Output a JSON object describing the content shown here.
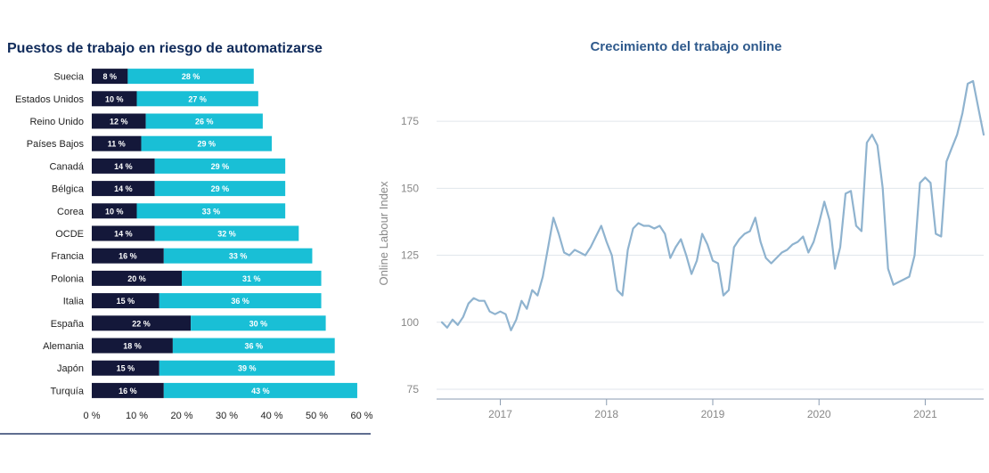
{
  "charts": {
    "left_title": "Puestos de trabajo en riesgo de automatizarse",
    "right_title": "Crecimiento del trabajo online"
  },
  "colors": {
    "dark": "#14183a",
    "light": "#19bfd6",
    "line": "#8fb3cf",
    "grid": "#e1e6ec"
  },
  "chart_data": [
    {
      "type": "bar",
      "orientation": "horizontal",
      "stacked": true,
      "title": "Puestos de trabajo en riesgo de automatizarse",
      "categories": [
        "Suecia",
        "Estados Unidos",
        "Reino Unido",
        "Países Bajos",
        "Canadá",
        "Bélgica",
        "Corea",
        "OCDE",
        "Francia",
        "Polonia",
        "Italia",
        "España",
        "Alemania",
        "Japón",
        "Turquía"
      ],
      "series": [
        {
          "values": [
            8,
            10,
            12,
            11,
            14,
            14,
            10,
            14,
            16,
            20,
            15,
            22,
            18,
            15,
            16
          ],
          "labels": [
            "8 %",
            "10 %",
            "12 %",
            "11 %",
            "14 %",
            "14 %",
            "10 %",
            "14 %",
            "16 %",
            "20 %",
            "15 %",
            "22 %",
            "18 %",
            "15 %",
            "16 %"
          ]
        },
        {
          "values": [
            28,
            27,
            26,
            29,
            29,
            29,
            33,
            32,
            33,
            31,
            36,
            30,
            36,
            39,
            43
          ],
          "labels": [
            "28 %",
            "27 %",
            "26 %",
            "29 %",
            "29 %",
            "29 %",
            "33 %",
            "32 %",
            "33 %",
            "31 %",
            "36 %",
            "30 %",
            "36 %",
            "39 %",
            "43 %"
          ]
        }
      ],
      "xlim": [
        0,
        60
      ],
      "xticks": [
        0,
        10,
        20,
        30,
        40,
        50,
        60
      ],
      "xtick_labels": [
        "0 %",
        "10 %",
        "20 %",
        "30 %",
        "40 %",
        "50 %",
        "60 %"
      ],
      "grid": false,
      "legend": "none"
    },
    {
      "type": "line",
      "title": "Crecimiento del trabajo online",
      "ylabel": "Online Labour Index",
      "xlim": [
        2016.4,
        2021.55
      ],
      "ylim": [
        72,
        192
      ],
      "yticks": [
        75,
        100,
        125,
        150,
        175
      ],
      "ytick_labels": [
        "75",
        "100",
        "125",
        "150",
        "175"
      ],
      "xticks": [
        2017,
        2018,
        2019,
        2020,
        2021
      ],
      "xtick_labels": [
        "2017",
        "2018",
        "2019",
        "2020",
        "2021"
      ],
      "grid": "horizontal",
      "legend": "none",
      "x": [
        2016.45,
        2016.5,
        2016.55,
        2016.6,
        2016.65,
        2016.7,
        2016.75,
        2016.8,
        2016.85,
        2016.9,
        2016.95,
        2017.0,
        2017.05,
        2017.1,
        2017.15,
        2017.2,
        2017.25,
        2017.3,
        2017.35,
        2017.4,
        2017.45,
        2017.5,
        2017.55,
        2017.6,
        2017.65,
        2017.7,
        2017.75,
        2017.8,
        2017.85,
        2017.9,
        2017.95,
        2018.0,
        2018.05,
        2018.1,
        2018.15,
        2018.2,
        2018.25,
        2018.3,
        2018.35,
        2018.4,
        2018.45,
        2018.5,
        2018.55,
        2018.6,
        2018.65,
        2018.7,
        2018.75,
        2018.8,
        2018.85,
        2018.9,
        2018.95,
        2019.0,
        2019.05,
        2019.1,
        2019.15,
        2019.2,
        2019.25,
        2019.3,
        2019.35,
        2019.4,
        2019.45,
        2019.5,
        2019.55,
        2019.6,
        2019.65,
        2019.7,
        2019.75,
        2019.8,
        2019.85,
        2019.9,
        2019.95,
        2020.0,
        2020.05,
        2020.1,
        2020.15,
        2020.2,
        2020.25,
        2020.3,
        2020.35,
        2020.4,
        2020.45,
        2020.5,
        2020.55,
        2020.6,
        2020.65,
        2020.7,
        2020.75,
        2020.8,
        2020.85,
        2020.9,
        2020.95,
        2021.0,
        2021.05,
        2021.1,
        2021.15,
        2021.2,
        2021.25,
        2021.3,
        2021.35,
        2021.4,
        2021.45,
        2021.5,
        2021.55
      ],
      "y": [
        100,
        98,
        101,
        99,
        102,
        107,
        109,
        108,
        108,
        104,
        103,
        104,
        103,
        97,
        101,
        108,
        105,
        112,
        110,
        117,
        128,
        139,
        133,
        126,
        125,
        127,
        126,
        125,
        128,
        132,
        136,
        130,
        125,
        112,
        110,
        127,
        135,
        137,
        136,
        136,
        135,
        136,
        133,
        124,
        128,
        131,
        125,
        118,
        123,
        133,
        129,
        123,
        122,
        110,
        112,
        128,
        131,
        133,
        134,
        139,
        130,
        124,
        122,
        124,
        126,
        127,
        129,
        130,
        132,
        126,
        130,
        137,
        145,
        138,
        120,
        128,
        148,
        149,
        136,
        134,
        167,
        170,
        166,
        150,
        120,
        114,
        115,
        116,
        117,
        125,
        152,
        154,
        152,
        133,
        132,
        160,
        165,
        170,
        178,
        189,
        190,
        180,
        170
      ]
    }
  ]
}
